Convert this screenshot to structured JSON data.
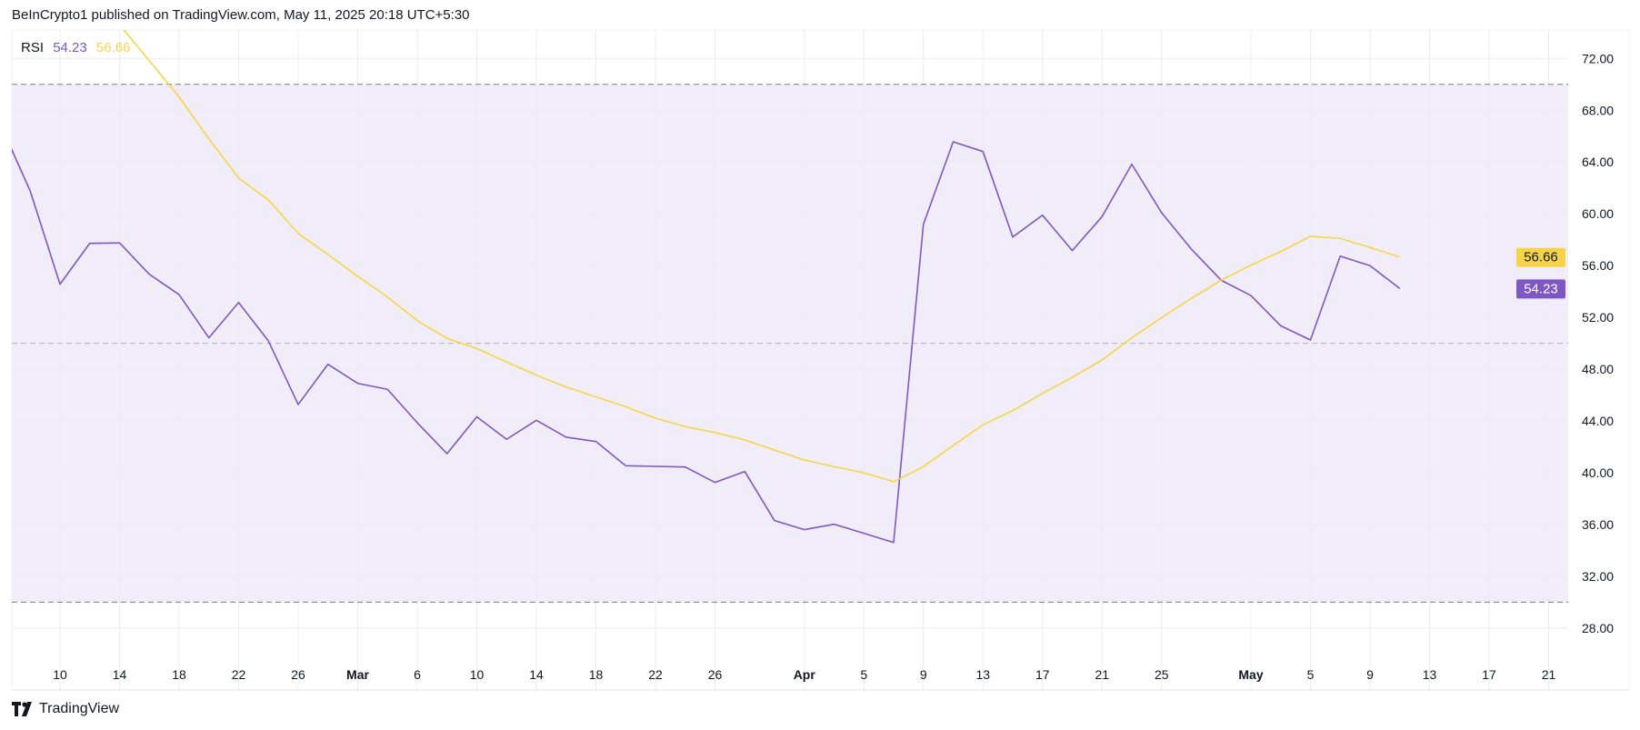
{
  "header": {
    "attribution": "BeInCrypto1 published on TradingView.com, May 11, 2025 20:18 UTC+5:30"
  },
  "legend": {
    "indicator": "RSI",
    "rsi_value": "54.23",
    "ma_value": "56.66"
  },
  "footer": {
    "brand": "TradingView",
    "logo_icon": "tradingview-logo-icon"
  },
  "colors": {
    "rsi": "#7E57C2",
    "ma": "#F5D547",
    "band": "#F1EDF8",
    "grid": "#EDEBF2",
    "level_dash": "#787B86",
    "mid_dash": "#B2AEC2"
  },
  "chart_data": {
    "type": "line",
    "title": "",
    "xlabel": "",
    "ylabel": "",
    "ylim": [
      26,
      74.5
    ],
    "grid": true,
    "bands": [
      {
        "from": 30,
        "to": 70
      }
    ],
    "levels": [
      70,
      50,
      30
    ],
    "yticks": [
      "72.00",
      "68.00",
      "64.00",
      "60.00",
      "56.00",
      "52.00",
      "48.00",
      "44.00",
      "40.00",
      "36.00",
      "32.00",
      "28.00"
    ],
    "xticks": [
      {
        "date": "2025-02-10",
        "label": "10"
      },
      {
        "date": "2025-02-14",
        "label": "14"
      },
      {
        "date": "2025-02-18",
        "label": "18"
      },
      {
        "date": "2025-02-22",
        "label": "22"
      },
      {
        "date": "2025-02-26",
        "label": "26"
      },
      {
        "date": "2025-03-02",
        "label": "Mar",
        "month": true
      },
      {
        "date": "2025-03-06",
        "label": "6"
      },
      {
        "date": "2025-03-10",
        "label": "10"
      },
      {
        "date": "2025-03-14",
        "label": "14"
      },
      {
        "date": "2025-03-18",
        "label": "18"
      },
      {
        "date": "2025-03-22",
        "label": "22"
      },
      {
        "date": "2025-03-26",
        "label": "26"
      },
      {
        "date": "2025-04-01",
        "label": "Apr",
        "month": true
      },
      {
        "date": "2025-04-05",
        "label": "5"
      },
      {
        "date": "2025-04-09",
        "label": "9"
      },
      {
        "date": "2025-04-13",
        "label": "13"
      },
      {
        "date": "2025-04-17",
        "label": "17"
      },
      {
        "date": "2025-04-21",
        "label": "21"
      },
      {
        "date": "2025-04-25",
        "label": "25"
      },
      {
        "date": "2025-05-01",
        "label": "May",
        "month": true
      },
      {
        "date": "2025-05-05",
        "label": "5"
      },
      {
        "date": "2025-05-09",
        "label": "9"
      },
      {
        "date": "2025-05-13",
        "label": "13"
      },
      {
        "date": "2025-05-17",
        "label": "17"
      },
      {
        "date": "2025-05-21",
        "label": "21"
      }
    ],
    "x": [
      "2025-02-06",
      "2025-02-08",
      "2025-02-10",
      "2025-02-12",
      "2025-02-14",
      "2025-02-16",
      "2025-02-18",
      "2025-02-20",
      "2025-02-22",
      "2025-02-24",
      "2025-02-26",
      "2025-02-28",
      "2025-03-02",
      "2025-03-04",
      "2025-03-06",
      "2025-03-08",
      "2025-03-10",
      "2025-03-12",
      "2025-03-14",
      "2025-03-16",
      "2025-03-18",
      "2025-03-20",
      "2025-03-22",
      "2025-03-24",
      "2025-03-26",
      "2025-03-28",
      "2025-03-30",
      "2025-04-01",
      "2025-04-03",
      "2025-04-05",
      "2025-04-07",
      "2025-04-09",
      "2025-04-11",
      "2025-04-13",
      "2025-04-15",
      "2025-04-17",
      "2025-04-19",
      "2025-04-21",
      "2025-04-23",
      "2025-04-25",
      "2025-04-27",
      "2025-04-29",
      "2025-05-01",
      "2025-05-03",
      "2025-05-05",
      "2025-05-07",
      "2025-05-09",
      "2025-05-11"
    ],
    "series": [
      {
        "name": "RSI",
        "color": "#7E57C2",
        "last_label": "54.23",
        "values": [
          66.9,
          61.76,
          54.56,
          57.72,
          57.75,
          55.33,
          53.76,
          50.42,
          53.15,
          50.18,
          45.27,
          48.38,
          46.9,
          46.44,
          43.86,
          41.47,
          44.32,
          42.58,
          44.05,
          42.74,
          42.41,
          40.54,
          40.49,
          40.44,
          39.25,
          40.09,
          36.3,
          35.6,
          36.02,
          35.32,
          34.61,
          59.19,
          65.56,
          64.81,
          58.21,
          59.89,
          57.16,
          59.78,
          63.83,
          60.08,
          57.27,
          54.87,
          53.69,
          51.35,
          50.25,
          56.73,
          55.99,
          54.23
        ]
      },
      {
        "color": "#F5D547",
        "last_label": "56.66",
        "values": [
          null,
          null,
          null,
          null,
          74.6,
          71.83,
          69.02,
          65.8,
          62.77,
          61.07,
          58.49,
          56.85,
          55.17,
          53.57,
          51.75,
          50.37,
          49.6,
          48.55,
          47.54,
          46.62,
          45.85,
          45.1,
          44.21,
          43.56,
          43.1,
          42.53,
          41.75,
          40.98,
          40.47,
          40.0,
          39.3,
          40.47,
          42.1,
          43.7,
          44.8,
          46.13,
          47.37,
          48.71,
          50.42,
          51.99,
          53.46,
          54.87,
          56.03,
          57.08,
          58.26,
          58.1,
          57.4,
          56.66
        ]
      }
    ]
  }
}
